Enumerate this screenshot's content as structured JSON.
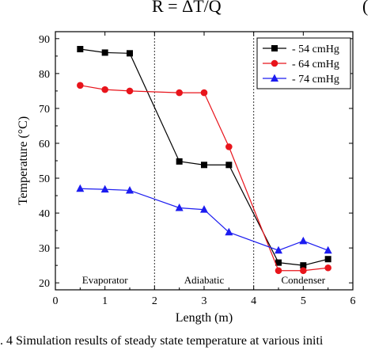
{
  "equation": {
    "text": "R = ΔT/Q",
    "number": "("
  },
  "caption": ". 4  Simulation results of steady state temperature at various initi",
  "chart_data": {
    "type": "line",
    "xlabel": "Length (m)",
    "ylabel": "Temperature (°C)",
    "xlim": [
      0,
      6
    ],
    "ylim": [
      18,
      92
    ],
    "xticks": [
      0,
      1,
      2,
      3,
      4,
      5,
      6
    ],
    "yticks": [
      20,
      30,
      40,
      50,
      60,
      70,
      80,
      90
    ],
    "grid": false,
    "legend_position": "top-right",
    "region_dividers_x": [
      2,
      4
    ],
    "region_labels": [
      {
        "text": "Evaporator",
        "x": 1.0
      },
      {
        "text": "Adiabatic",
        "x": 3.0
      },
      {
        "text": "Condenser",
        "x": 5.0
      }
    ],
    "series": [
      {
        "name": "- 54 cmHg",
        "color": "#000000",
        "marker": "square",
        "x": [
          0.5,
          1.0,
          1.5,
          2.5,
          3.0,
          3.5,
          4.5,
          5.0,
          5.5
        ],
        "y": [
          87.0,
          86.0,
          85.8,
          54.8,
          53.8,
          53.8,
          25.8,
          25.0,
          26.8
        ]
      },
      {
        "name": "- 64 cmHg",
        "color": "#e8141b",
        "marker": "circle",
        "x": [
          0.5,
          1.0,
          1.5,
          2.5,
          3.0,
          3.5,
          4.5,
          5.0,
          5.5
        ],
        "y": [
          76.6,
          75.4,
          75.0,
          74.5,
          74.5,
          59.0,
          23.5,
          23.5,
          24.3
        ]
      },
      {
        "name": "- 74 cmHg",
        "color": "#1c1cf0",
        "marker": "triangle",
        "x": [
          0.5,
          1.0,
          1.5,
          2.5,
          3.0,
          3.5,
          4.5,
          5.0,
          5.5
        ],
        "y": [
          47.0,
          46.8,
          46.5,
          41.5,
          41.0,
          34.5,
          29.3,
          32.0,
          29.3
        ]
      }
    ]
  }
}
